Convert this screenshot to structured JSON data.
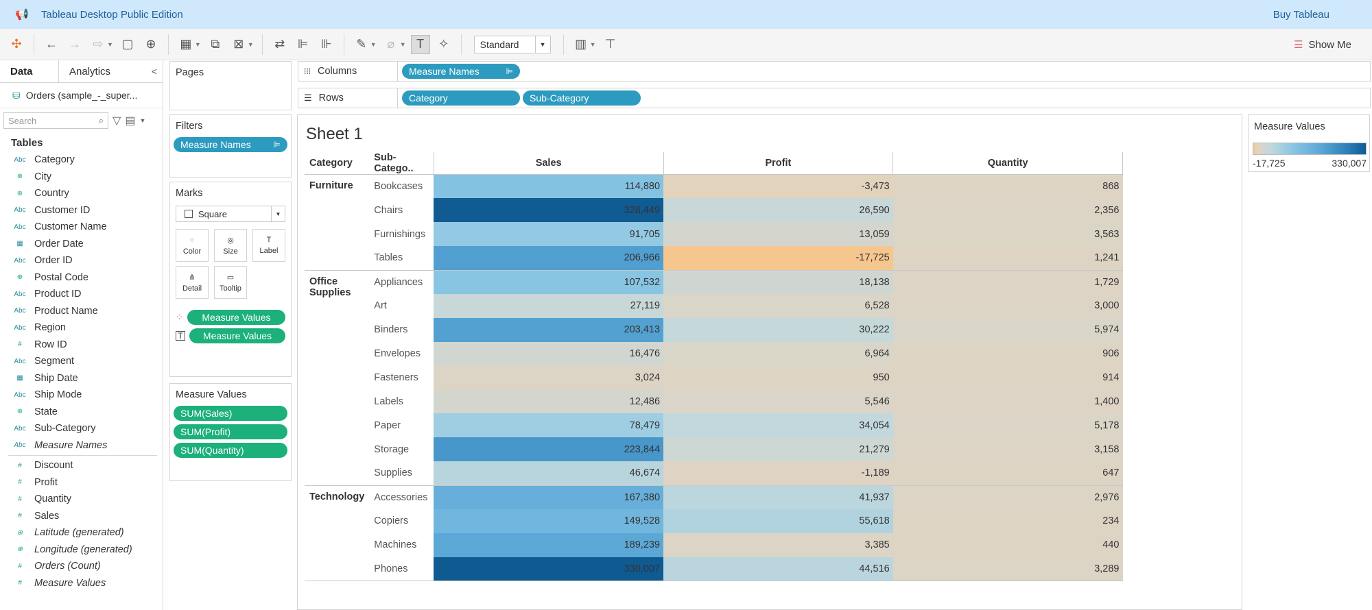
{
  "app": {
    "title": "Tableau Desktop Public Edition",
    "buy_label": "Buy Tableau"
  },
  "toolbar": {
    "fit_value": "Standard",
    "show_me_label": "Show Me"
  },
  "data_pane": {
    "tab_data": "Data",
    "tab_analytics": "Analytics",
    "datasource": "Orders (sample_-_super...",
    "search_placeholder": "Search",
    "tables_heading": "Tables",
    "dimensions": [
      {
        "type": "Abc",
        "name": "Category"
      },
      {
        "type": "globe",
        "name": "City"
      },
      {
        "type": "globe",
        "name": "Country"
      },
      {
        "type": "Abc",
        "name": "Customer ID"
      },
      {
        "type": "Abc",
        "name": "Customer Name"
      },
      {
        "type": "date",
        "name": "Order Date"
      },
      {
        "type": "Abc",
        "name": "Order ID"
      },
      {
        "type": "globe",
        "name": "Postal Code"
      },
      {
        "type": "Abc",
        "name": "Product ID"
      },
      {
        "type": "Abc",
        "name": "Product Name"
      },
      {
        "type": "Abc",
        "name": "Region"
      },
      {
        "type": "#",
        "name": "Row ID"
      },
      {
        "type": "Abc",
        "name": "Segment"
      },
      {
        "type": "date",
        "name": "Ship Date"
      },
      {
        "type": "Abc",
        "name": "Ship Mode"
      },
      {
        "type": "globe",
        "name": "State"
      },
      {
        "type": "Abc",
        "name": "Sub-Category"
      },
      {
        "type": "Abc",
        "name": "Measure Names",
        "italic": true
      }
    ],
    "measures": [
      {
        "type": "#",
        "name": "Discount"
      },
      {
        "type": "#",
        "name": "Profit"
      },
      {
        "type": "#",
        "name": "Quantity"
      },
      {
        "type": "#",
        "name": "Sales"
      },
      {
        "type": "globe",
        "name": "Latitude (generated)",
        "italic": true
      },
      {
        "type": "globe",
        "name": "Longitude (generated)",
        "italic": true
      },
      {
        "type": "#",
        "name": "Orders (Count)",
        "italic": true
      },
      {
        "type": "#",
        "name": "Measure Values",
        "italic": true
      }
    ]
  },
  "cards": {
    "pages": "Pages",
    "filters": "Filters",
    "filter_pill": "Measure Names",
    "marks": "Marks",
    "mark_type": "Square",
    "mark_buttons": [
      "Color",
      "Size",
      "Label",
      "Detail",
      "Tooltip"
    ],
    "marks_pills": [
      "Measure Values",
      "Measure Values"
    ],
    "measure_values": "Measure Values",
    "mv_pills": [
      "SUM(Sales)",
      "SUM(Profit)",
      "SUM(Quantity)"
    ]
  },
  "shelves": {
    "columns_label": "Columns",
    "rows_label": "Rows",
    "columns_pills": [
      "Measure Names"
    ],
    "rows_pills": [
      "Category",
      "Sub-Category"
    ]
  },
  "sheet": {
    "title": "Sheet 1"
  },
  "legend": {
    "title": "Measure Values",
    "min_label": "-17,725",
    "max_label": "330,007"
  },
  "chart_data": {
    "type": "table",
    "row_headers": [
      "Category",
      "Sub-Catego.."
    ],
    "columns": [
      "Sales",
      "Profit",
      "Quantity"
    ],
    "groups": [
      {
        "category": "Furniture",
        "rows": [
          {
            "sub": "Bookcases",
            "values": [
              114880,
              -3473,
              868
            ]
          },
          {
            "sub": "Chairs",
            "values": [
              328449,
              26590,
              2356
            ]
          },
          {
            "sub": "Furnishings",
            "values": [
              91705,
              13059,
              3563
            ]
          },
          {
            "sub": "Tables",
            "values": [
              206966,
              -17725,
              1241
            ]
          }
        ]
      },
      {
        "category": "Office Supplies",
        "rows": [
          {
            "sub": "Appliances",
            "values": [
              107532,
              18138,
              1729
            ]
          },
          {
            "sub": "Art",
            "values": [
              27119,
              6528,
              3000
            ]
          },
          {
            "sub": "Binders",
            "values": [
              203413,
              30222,
              5974
            ]
          },
          {
            "sub": "Envelopes",
            "values": [
              16476,
              6964,
              906
            ]
          },
          {
            "sub": "Fasteners",
            "values": [
              3024,
              950,
              914
            ]
          },
          {
            "sub": "Labels",
            "values": [
              12486,
              5546,
              1400
            ]
          },
          {
            "sub": "Paper",
            "values": [
              78479,
              34054,
              5178
            ]
          },
          {
            "sub": "Storage",
            "values": [
              223844,
              21279,
              3158
            ]
          },
          {
            "sub": "Supplies",
            "values": [
              46674,
              -1189,
              647
            ]
          }
        ]
      },
      {
        "category": "Technology",
        "rows": [
          {
            "sub": "Accessories",
            "values": [
              167380,
              41937,
              2976
            ]
          },
          {
            "sub": "Copiers",
            "values": [
              149528,
              55618,
              234
            ]
          },
          {
            "sub": "Machines",
            "values": [
              189239,
              3385,
              440
            ]
          },
          {
            "sub": "Phones",
            "values": [
              330007,
              44516,
              3289
            ]
          }
        ]
      }
    ],
    "color_range": [
      -17725,
      330007
    ]
  }
}
